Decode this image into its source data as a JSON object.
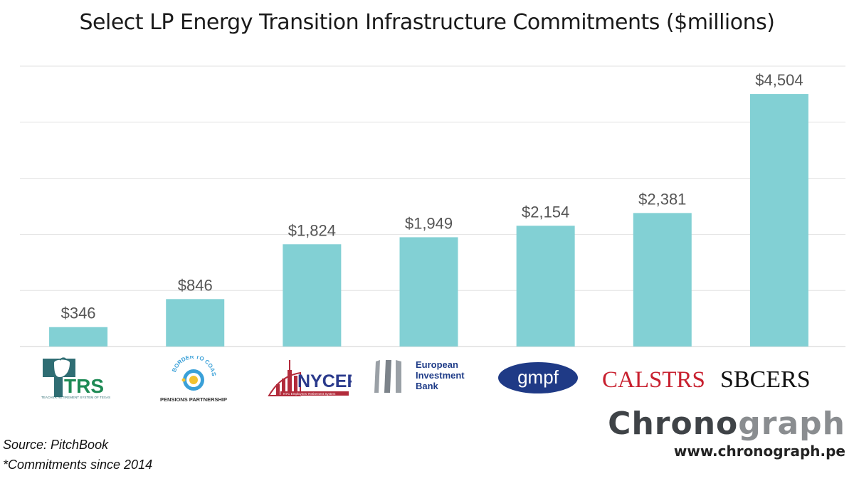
{
  "chart_data": {
    "type": "bar",
    "title": "Select LP Energy Transition Infrastructure Commitments ($millions)",
    "categories": [
      "TRS",
      "Border to Coast",
      "NYCERS",
      "European Investment Bank",
      "gmpf",
      "CalSTRS",
      "SBCERS"
    ],
    "values": [
      346,
      846,
      1824,
      1949,
      2154,
      2381,
      4504
    ],
    "value_labels": [
      "$346",
      "$846",
      "$1,824",
      "$1,949",
      "$2,154",
      "$2,381",
      "$4,504"
    ],
    "ylim": [
      0,
      5000
    ],
    "grid": true,
    "bar_color": "#82d0d4"
  },
  "logos": {
    "trs": {
      "name": "TRS",
      "sub": "TEACHER RETIREMENT SYSTEM OF TEXAS"
    },
    "btc": {
      "top": "BORDER TO COAST",
      "bottom": "PENSIONS PARTNERSHIP"
    },
    "nycers": {
      "name": "NYCERS",
      "sub": "NYC Employees' Retirement System"
    },
    "eib": {
      "line1": "European",
      "line2": "Investment",
      "line3": "Bank"
    },
    "gmpf": {
      "name": "gmpf"
    },
    "calstrs": {
      "name": "CALSTRS",
      "mark": "."
    },
    "sbcers": {
      "name": "SBCERS"
    }
  },
  "footer": {
    "source": "Source: PitchBook",
    "note": "*Commitments since 2014",
    "brand_a": "Chrono",
    "brand_b": "graph",
    "url": "www.chronograph.pe"
  }
}
